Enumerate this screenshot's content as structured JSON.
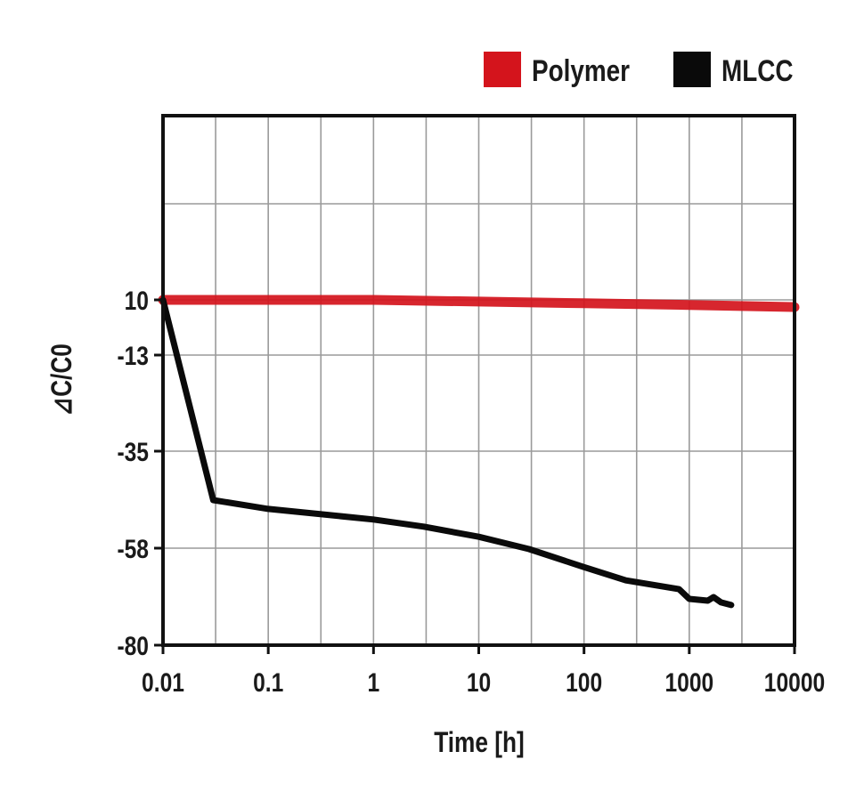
{
  "chart_data": {
    "type": "line",
    "title": "",
    "xlabel": "Time [h]",
    "ylabel": "⊿C/C0",
    "xscale": "log",
    "xlim": [
      0.01,
      10000
    ],
    "ylim": [
      -80,
      10
    ],
    "x_ticks": [
      "0.01",
      "0.1",
      "1",
      "10",
      "100",
      "1000",
      "10000"
    ],
    "y_ticks": [
      "10",
      "-13",
      "-35",
      "-58",
      "-80"
    ],
    "grid": true,
    "legend_position": "top-right",
    "series": [
      {
        "name": "Polymer",
        "color": "#d4141c",
        "x": [
          0.01,
          1,
          10,
          100,
          1000,
          10000
        ],
        "y": [
          10,
          10,
          9.3,
          8.6,
          7.9,
          7
        ]
      },
      {
        "name": "MLCC",
        "color": "#0a0a0a",
        "x": [
          0.01,
          0.03,
          0.1,
          1,
          3,
          10,
          30,
          100,
          250,
          800,
          1000,
          1500,
          1700,
          2000,
          2500
        ],
        "y": [
          10,
          -46.6,
          -48.7,
          -51.2,
          -52.9,
          -55.3,
          -58.2,
          -62.3,
          -65.3,
          -67.3,
          -69.5,
          -69.9,
          -69.1,
          -70.3,
          -70.9
        ]
      }
    ]
  }
}
